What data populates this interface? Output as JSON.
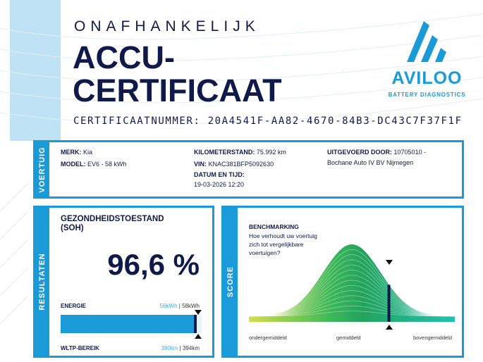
{
  "header": {
    "kicker": "ONAFHANKELIJK",
    "title_line1": "ACCU-",
    "title_line2": "CERTIFICAAT",
    "certificate_label": "CERTIFICAATNUMMER:",
    "certificate_number": "20A4541F-AA82-4670-84B3-DC43C7F37F1F"
  },
  "logo": {
    "name": "AVILOO",
    "tagline": "BATTERY DIAGNOSTICS",
    "color": "#1a9ad6"
  },
  "vehicle": {
    "section": "VOERTUIG",
    "brand_label": "MERK:",
    "brand": "Kia",
    "model_label": "MODEL:",
    "model": "EV6 - 58 kWh",
    "mileage_label": "KILOMETERSTAND:",
    "mileage": "75.992 km",
    "vin_label": "VIN:",
    "vin": "KNAC381BFP5092630",
    "datetime_label": "DATUM EN TIJD:",
    "datetime": "19-03-2026 12:20",
    "performed_by_label": "UITGEVOERD DOOR:",
    "performed_by_line1": "10705010 -",
    "performed_by_line2": "Bochane Auto IV BV Nijmegen"
  },
  "results": {
    "section": "RESULTATEN",
    "heading_line1": "GEZONDHEIDSTOESTAND",
    "heading_line2": "(SOH)",
    "soh": "96,6 %",
    "soh_fraction": 0.966,
    "energy_label": "ENERGIE",
    "energy_current": "56kWh",
    "energy_separator": "|",
    "energy_nominal": "58kWh",
    "range_label": "WLTP-BEREIK",
    "range_current": "380km",
    "range_separator": "|",
    "range_nominal": "394km"
  },
  "score": {
    "section": "SCORE",
    "heading": "BENCHMARKING",
    "question": "Hoe verhoudt uw voertuig zich tot vergelijkbare voertuigen?",
    "axis_low": "ondergemiddeld",
    "axis_mid": "gemiddeld",
    "axis_high": "bovengemiddeld",
    "position_fraction": 0.68
  },
  "colors": {
    "navy": "#0f1a4a",
    "blue": "#1a9ad6",
    "light_blue": "#bfe3f5"
  }
}
